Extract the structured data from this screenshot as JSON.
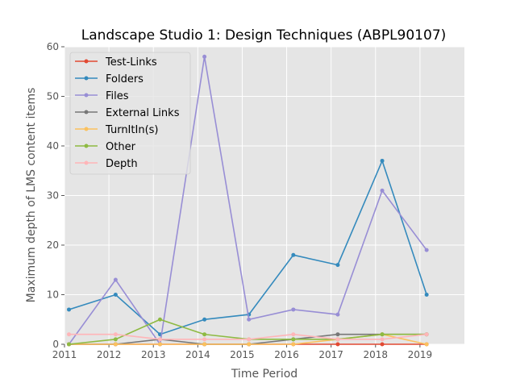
{
  "chart_data": {
    "type": "line",
    "title": "Landscape Studio 1: Design Techniques (ABPL90107)",
    "xlabel": "Time Period",
    "ylabel": "Maximum depth of LMS content items",
    "xlim": [
      2011,
      2020
    ],
    "ylim": [
      0,
      60
    ],
    "xticks": [
      "2011",
      "2012",
      "2013",
      "2014",
      "2015",
      "2016",
      "2017",
      "2018",
      "2019"
    ],
    "yticks": [
      "0",
      "10",
      "20",
      "30",
      "40",
      "50",
      "60"
    ],
    "grid": true,
    "legend_position": "upper-left",
    "x": [
      2011.1,
      2012.15,
      2013.15,
      2014.15,
      2015.15,
      2016.15,
      2017.15,
      2018.15,
      2019.15
    ],
    "series": [
      {
        "name": "Test-Links",
        "color": "#E24A33",
        "values": [
          0,
          0,
          0,
          0,
          0,
          0,
          0,
          0,
          0
        ]
      },
      {
        "name": "Folders",
        "color": "#348ABD",
        "values": [
          7,
          10,
          2,
          5,
          6,
          18,
          16,
          37,
          10
        ]
      },
      {
        "name": "Files",
        "color": "#988ED5",
        "values": [
          0,
          13,
          0,
          58,
          5,
          7,
          6,
          31,
          19
        ]
      },
      {
        "name": "External Links",
        "color": "#777777",
        "values": [
          0,
          0,
          1,
          0,
          0,
          1,
          2,
          2,
          2
        ]
      },
      {
        "name": "TurnItIn(s)",
        "color": "#FBC15E",
        "values": [
          0,
          0,
          0,
          0,
          0,
          0,
          1,
          2,
          0
        ]
      },
      {
        "name": "Other",
        "color": "#8EBA42",
        "values": [
          0,
          1,
          5,
          2,
          1,
          1,
          1,
          2,
          2
        ]
      },
      {
        "name": "Depth",
        "color": "#FFB5B8",
        "values": [
          2,
          2,
          1,
          1,
          1,
          2,
          1,
          1,
          2
        ]
      }
    ]
  }
}
